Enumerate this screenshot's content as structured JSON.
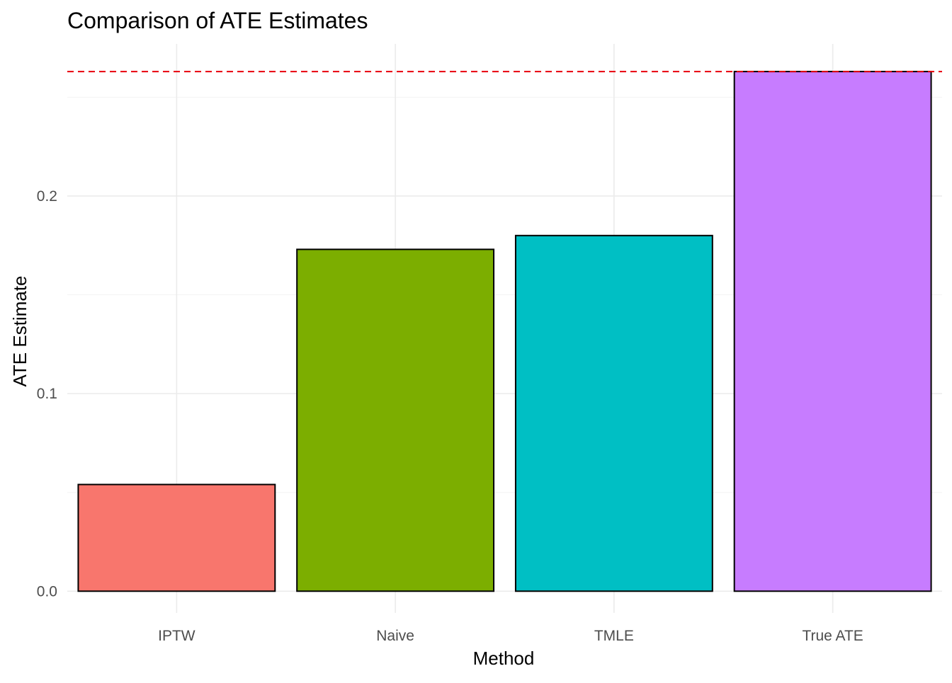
{
  "chart_data": {
    "type": "bar",
    "title": "Comparison of ATE Estimates",
    "xlabel": "Method",
    "ylabel": "ATE Estimate",
    "categories": [
      "IPTW",
      "Naive",
      "TMLE",
      "True ATE"
    ],
    "values": [
      0.054,
      0.173,
      0.18,
      0.263
    ],
    "colors": [
      "#F8766D",
      "#7CAE00",
      "#00BFC4",
      "#C77CFF"
    ],
    "bar_outline_color": "#000000",
    "ylim": [
      -0.011,
      0.277
    ],
    "yticks": [
      0.0,
      0.1,
      0.2
    ],
    "ytick_labels": [
      "0.0",
      "0.1",
      "0.2"
    ],
    "reference_line": {
      "y": 0.263,
      "color": "#E8000B",
      "style": "dashed"
    },
    "grid": true,
    "legend": "none"
  }
}
